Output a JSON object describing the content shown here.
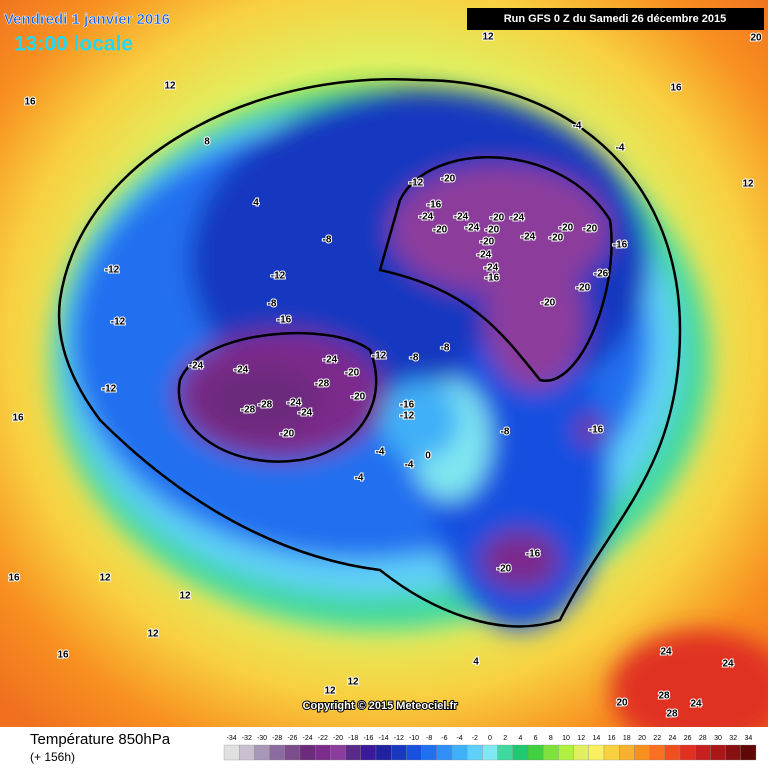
{
  "header": {
    "date": "Vendredi 1 janvier 2016",
    "time": "13:00 locale",
    "run": "Run GFS 0 Z du Samedi 26 décembre 2015"
  },
  "copyright": "Copyright © 2015 Meteociel.fr",
  "footer": {
    "title": "Température 850hPa",
    "lead": "(+ 156h)"
  },
  "colorbar": {
    "ticks": [
      -34,
      -32,
      -30,
      -28,
      -26,
      -24,
      -22,
      -20,
      -18,
      -16,
      -14,
      -12,
      -10,
      -8,
      -6,
      -4,
      -2,
      0,
      2,
      4,
      6,
      8,
      10,
      12,
      14,
      16,
      18,
      20,
      22,
      24,
      26,
      28,
      30,
      32,
      34
    ],
    "colors": [
      "#e0e0e0",
      "#c8c0d0",
      "#a898b8",
      "#8c6ca0",
      "#7c4c8c",
      "#6c2c7c",
      "#7c2c8c",
      "#8c3c9c",
      "#5a2a8a",
      "#3a1a9a",
      "#2020a0",
      "#1838c0",
      "#1850e0",
      "#2070f0",
      "#3090f8",
      "#40b0f8",
      "#60d0f8",
      "#80e8f0",
      "#40d8a0",
      "#20c870",
      "#40d040",
      "#80e040",
      "#b0f040",
      "#e0f060",
      "#f8f060",
      "#f8d040",
      "#f8b030",
      "#f89020",
      "#f87020",
      "#f05020",
      "#e03020",
      "#c82020",
      "#a81818",
      "#881010",
      "#600808"
    ]
  },
  "contour_labels": [
    "-24",
    "-24",
    "-28",
    "-28",
    "-24",
    "-24",
    "-20",
    "-28",
    "-24",
    "-20",
    "-20",
    "-12",
    "-8",
    "-8",
    "-16",
    "-12",
    "-4",
    "-4",
    "0",
    "-4",
    "-8",
    "-16",
    "-16",
    "-20",
    "-20",
    "-16",
    "-24",
    "-24",
    "-20",
    "-24",
    "-20",
    "-24",
    "-20",
    "-24",
    "-20",
    "-24",
    "-24",
    "-16",
    "-20",
    "-20",
    "-20",
    "-20",
    "-26",
    "-20",
    "-16",
    "-12",
    "-12",
    "-12",
    "-12",
    "-16",
    "-8",
    "-12",
    "-8",
    "-4",
    "-4",
    "4",
    "8",
    "12",
    "16",
    "16",
    "16",
    "12",
    "12",
    "12",
    "16",
    "4",
    "20",
    "16",
    "12",
    "24",
    "24",
    "28",
    "28",
    "24",
    "20",
    "12",
    "12",
    "12"
  ]
}
